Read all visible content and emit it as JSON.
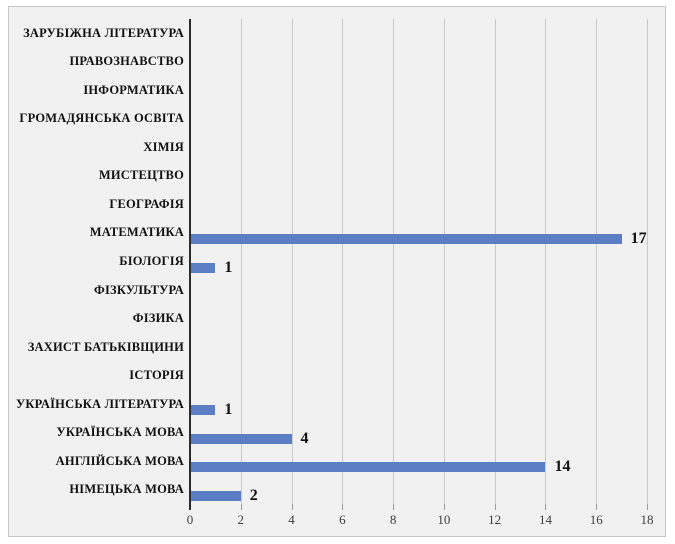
{
  "chart_data": {
    "type": "bar",
    "orientation": "horizontal",
    "title": "",
    "xlabel": "",
    "ylabel": "",
    "categories": [
      "ЗАРУБІЖНА ЛІТЕРАТУРА",
      "ПРАВОЗНАВСТВО",
      "ІНФОРМАТИКА",
      "ГРОМАДЯНСЬКА ОСВІТА",
      "ХІМІЯ",
      "МИСТЕЦТВО",
      "ГЕОГРАФІЯ",
      "МАТЕМАТИКА",
      "БІОЛОГІЯ",
      "ФІЗКУЛЬТУРА",
      "ФІЗИКА",
      "ЗАХИСТ БАТЬКІВЩИНИ",
      "ІСТОРІЯ",
      "УКРАЇНСЬКА ЛІТЕРАТУРА",
      "УКРАЇНСЬКА МОВА",
      "АНГЛІЙСЬКА МОВА",
      "НІМЕЦЬКА МОВА"
    ],
    "values": [
      0,
      0,
      0,
      0,
      0,
      0,
      0,
      17,
      1,
      0,
      0,
      0,
      0,
      1,
      4,
      14,
      2
    ],
    "data_labels": [
      "",
      "",
      "",
      "",
      "",
      "",
      "",
      "17",
      "1",
      "",
      "",
      "",
      "",
      "1",
      "4",
      "14",
      "2"
    ],
    "x_ticks": [
      "0",
      "2",
      "4",
      "6",
      "8",
      "10",
      "12",
      "14",
      "16",
      "18"
    ],
    "xlim": [
      0,
      18
    ],
    "grid": "vertical gridlines every 2 units",
    "legend": "none",
    "bar_color": "#5B7EC5",
    "zero_value_bars_hidden": true
  },
  "colors": {
    "chart_background": "#f1f1f1",
    "page_background": "#ffffff",
    "frame_border": "#c6c6c6",
    "gridline": "#c9c9c9",
    "axis_line": "#2b2b2b",
    "label_text": "#111111",
    "tick_text": "#3d3d3d"
  }
}
